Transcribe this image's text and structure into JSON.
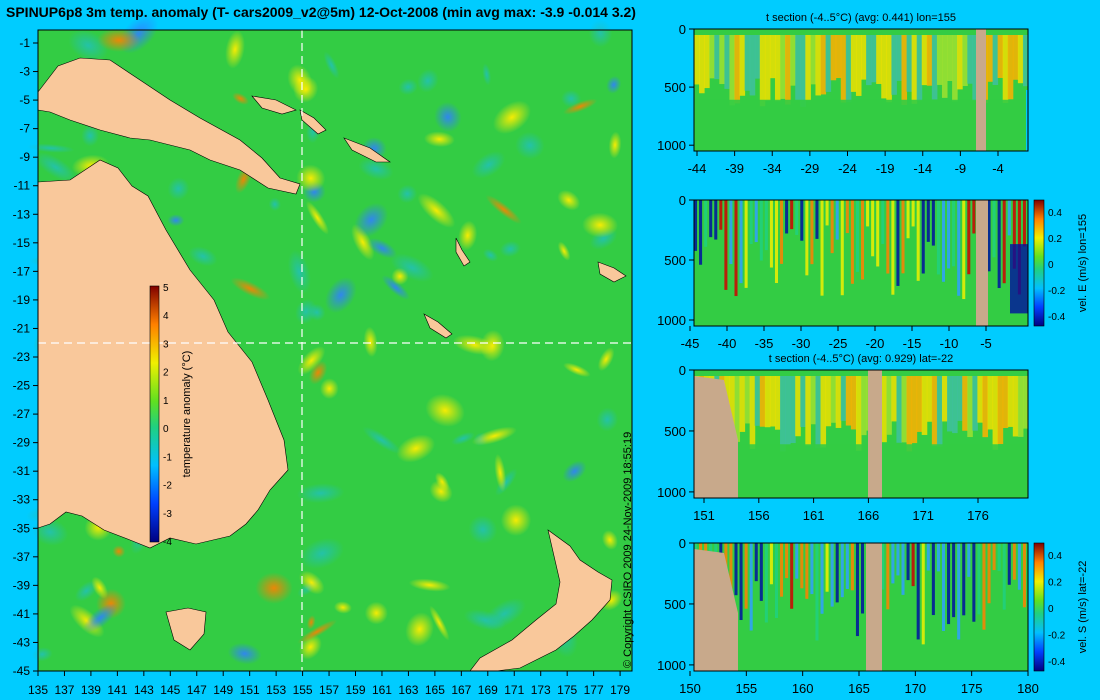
{
  "title": "SPINUP6p8 3m temp. anomaly (T- cars2009_v2@5m) 12-Oct-2008 (min avg max: -3.9 -0.014 3.2)",
  "copyright": "© Copyright CSIRO 2009   24-Nov-2009 18:55:19",
  "colors": {
    "background": "#00ccff",
    "land": "#f9c89b",
    "section_land": "#c8a98b",
    "ocean_base": "#33cc44"
  },
  "chart_data": [
    {
      "type": "heatmap",
      "name": "map",
      "x_ticks": [
        "135",
        "137",
        "139",
        "141",
        "143",
        "145",
        "147",
        "149",
        "151",
        "153",
        "155",
        "157",
        "159",
        "161",
        "163",
        "165",
        "167",
        "169",
        "171",
        "173",
        "175",
        "177",
        "179"
      ],
      "y_ticks": [
        "-1",
        "-3",
        "-5",
        "-7",
        "-9",
        "-11",
        "-13",
        "-15",
        "-17",
        "-19",
        "-21",
        "-23",
        "-25",
        "-27",
        "-29",
        "-31",
        "-33",
        "-35",
        "-37",
        "-39",
        "-41",
        "-43",
        "-45"
      ],
      "xlim": [
        135,
        180
      ],
      "ylim": [
        -45,
        0
      ],
      "crosshair": {
        "lon": 155,
        "lat": -22
      },
      "colorbar": {
        "label": "temperature anomaly (°C)",
        "ticks": [
          "5",
          "4",
          "3",
          "2",
          "1",
          "0",
          "-1",
          "-2",
          "-3",
          "-4"
        ],
        "range": [
          -4,
          5
        ]
      }
    },
    {
      "type": "heatmap",
      "name": "t-section-lon",
      "title": "t section (-4..5°C) (avg: 0.441) lon=155",
      "x_ticks": [
        "-44",
        "-39",
        "-34",
        "-29",
        "-24",
        "-19",
        "-14",
        "-9",
        "-4"
      ],
      "y_ticks": [
        "0",
        "500",
        "1000"
      ],
      "xlim": [
        -45,
        -1
      ],
      "ylim": [
        1050,
        0
      ]
    },
    {
      "type": "heatmap",
      "name": "vel-e-section",
      "x_ticks": [
        "-45",
        "-40",
        "-35",
        "-30",
        "-25",
        "-20",
        "-15",
        "-10",
        "-5"
      ],
      "y_ticks": [
        "0",
        "500",
        "1000"
      ],
      "xlim": [
        -45,
        -1
      ],
      "colorbar": {
        "label": "vel. E (m/s) lon=155",
        "ticks": [
          "0.4",
          "0.2",
          "0",
          "-0.2",
          "-0.4"
        ],
        "range": [
          -0.45,
          0.45
        ]
      }
    },
    {
      "type": "heatmap",
      "name": "t-section-lat",
      "title": "t section (-4..5°C) (avg: 0.929) lat=-22",
      "x_ticks": [
        "151",
        "156",
        "161",
        "166",
        "171",
        "176"
      ],
      "y_ticks": [
        "0",
        "500",
        "1000"
      ],
      "xlim": [
        150,
        180
      ]
    },
    {
      "type": "heatmap",
      "name": "vel-s-section",
      "x_ticks": [
        "150",
        "155",
        "160",
        "165",
        "170",
        "175",
        "180"
      ],
      "y_ticks": [
        "0",
        "500",
        "1000"
      ],
      "xlim": [
        150,
        180
      ],
      "colorbar": {
        "label": "vel. S (m/s) lat=-22",
        "ticks": [
          "0.4",
          "0.2",
          "0",
          "-0.2",
          "-0.4"
        ],
        "range": [
          -0.45,
          0.45
        ]
      }
    }
  ]
}
